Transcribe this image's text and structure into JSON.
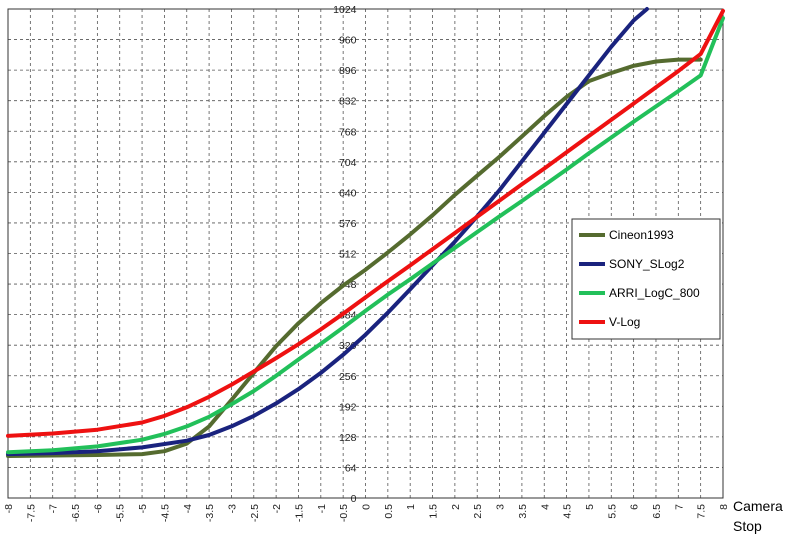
{
  "chart_data": {
    "type": "line",
    "xlabel_lines": [
      "Camera",
      "Stop"
    ],
    "ylabel": "",
    "xlim": [
      -8,
      8
    ],
    "ylim": [
      0,
      1024
    ],
    "grid": true,
    "x_ticks": [
      "-8",
      "-7.5",
      "-7",
      "-6.5",
      "-6",
      "-5.5",
      "-5",
      "-4.5",
      "-4",
      "-3.5",
      "-3",
      "-2.5",
      "-2",
      "-1.5",
      "-1",
      "-0.5",
      "0",
      "0.5",
      "1",
      "1.5",
      "2",
      "2.5",
      "3",
      "3.5",
      "4",
      "4.5",
      "5",
      "5.5",
      "6",
      "6.5",
      "7",
      "7.5",
      "8"
    ],
    "y_ticks": [
      "0",
      "64",
      "128",
      "192",
      "256",
      "320",
      "384",
      "448",
      "512",
      "576",
      "640",
      "704",
      "768",
      "832",
      "896",
      "960",
      "1024"
    ],
    "legend_position": "center-right",
    "series": [
      {
        "name": "Cineon1993",
        "color": "#556b2f",
        "points": [
          [
            -8,
            88
          ],
          [
            -7,
            89
          ],
          [
            -6,
            90
          ],
          [
            -5,
            92
          ],
          [
            -4.5,
            98
          ],
          [
            -4,
            114
          ],
          [
            -3.5,
            150
          ],
          [
            -3,
            205
          ],
          [
            -2.5,
            262
          ],
          [
            -2,
            318
          ],
          [
            -1.5,
            366
          ],
          [
            -1,
            408
          ],
          [
            -0.5,
            445
          ],
          [
            0,
            478
          ],
          [
            0.5,
            514
          ],
          [
            1,
            552
          ],
          [
            1.5,
            592
          ],
          [
            2,
            635
          ],
          [
            2.5,
            675
          ],
          [
            3,
            715
          ],
          [
            3.5,
            757
          ],
          [
            4,
            800
          ],
          [
            4.5,
            840
          ],
          [
            5,
            873
          ],
          [
            5.5,
            890
          ],
          [
            6,
            905
          ],
          [
            6.5,
            914
          ],
          [
            7,
            918
          ],
          [
            7.5,
            918
          ]
        ]
      },
      {
        "name": "SONY_SLog2",
        "color": "#1a237e",
        "points": [
          [
            -8,
            92
          ],
          [
            -7,
            94
          ],
          [
            -6,
            98
          ],
          [
            -5,
            106
          ],
          [
            -4,
            120
          ],
          [
            -3.5,
            132
          ],
          [
            -3,
            150
          ],
          [
            -2.5,
            172
          ],
          [
            -2,
            198
          ],
          [
            -1.5,
            228
          ],
          [
            -1,
            262
          ],
          [
            -0.5,
            300
          ],
          [
            0,
            342
          ],
          [
            0.5,
            388
          ],
          [
            1,
            437
          ],
          [
            1.5,
            487
          ],
          [
            2,
            537
          ],
          [
            2.5,
            590
          ],
          [
            3,
            645
          ],
          [
            3.5,
            705
          ],
          [
            4,
            765
          ],
          [
            4.5,
            825
          ],
          [
            5,
            885
          ],
          [
            5.5,
            945
          ],
          [
            6,
            1000
          ],
          [
            6.3,
            1024
          ]
        ]
      },
      {
        "name": "ARRI_LogC_800",
        "color": "#22c05a",
        "points": [
          [
            -8,
            96
          ],
          [
            -7,
            100
          ],
          [
            -6,
            108
          ],
          [
            -5,
            122
          ],
          [
            -4.5,
            134
          ],
          [
            -4,
            150
          ],
          [
            -3.5,
            170
          ],
          [
            -3,
            196
          ],
          [
            -2.5,
            224
          ],
          [
            -2,
            256
          ],
          [
            -1.5,
            290
          ],
          [
            -1,
            323
          ],
          [
            -0.5,
            357
          ],
          [
            0,
            392
          ],
          [
            0.5,
            426
          ],
          [
            1,
            458
          ],
          [
            1.5,
            491
          ],
          [
            2,
            524
          ],
          [
            2.5,
            557
          ],
          [
            3,
            590
          ],
          [
            3.5,
            622
          ],
          [
            4,
            655
          ],
          [
            4.5,
            688
          ],
          [
            5,
            722
          ],
          [
            5.5,
            755
          ],
          [
            6,
            788
          ],
          [
            6.5,
            820
          ],
          [
            7,
            852
          ],
          [
            7.5,
            885
          ],
          [
            8,
            1005
          ]
        ]
      },
      {
        "name": "V-Log",
        "color": "#ee1111",
        "points": [
          [
            -8,
            130
          ],
          [
            -7,
            135
          ],
          [
            -6,
            143
          ],
          [
            -5,
            158
          ],
          [
            -4.5,
            172
          ],
          [
            -4,
            190
          ],
          [
            -3.5,
            212
          ],
          [
            -3,
            237
          ],
          [
            -2.5,
            265
          ],
          [
            -2,
            293
          ],
          [
            -1.5,
            322
          ],
          [
            -1,
            353
          ],
          [
            -0.5,
            386
          ],
          [
            0,
            420
          ],
          [
            0.5,
            454
          ],
          [
            1,
            487
          ],
          [
            1.5,
            521
          ],
          [
            2,
            555
          ],
          [
            2.5,
            589
          ],
          [
            3,
            623
          ],
          [
            3.5,
            657
          ],
          [
            4,
            690
          ],
          [
            4.5,
            724
          ],
          [
            5,
            758
          ],
          [
            5.5,
            792
          ],
          [
            6,
            826
          ],
          [
            6.5,
            860
          ],
          [
            7,
            894
          ],
          [
            7.5,
            930
          ],
          [
            8,
            1020
          ]
        ]
      }
    ]
  }
}
